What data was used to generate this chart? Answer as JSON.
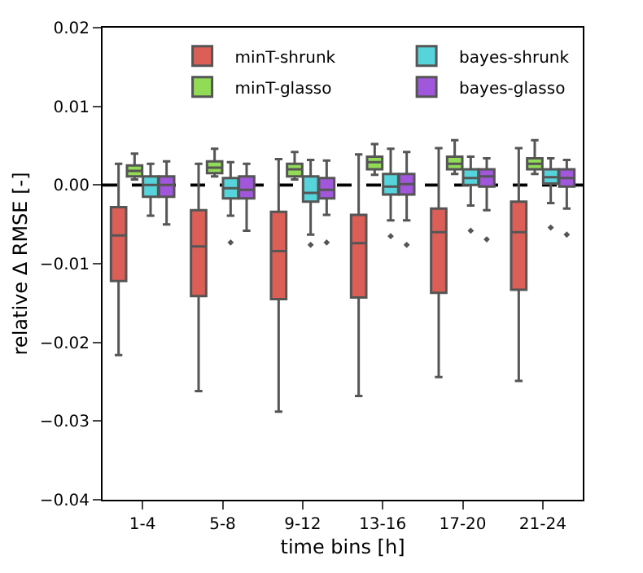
{
  "chart_data": {
    "type": "box",
    "xlabel": "time bins [h]",
    "ylabel": "relative Δ RMSE [-]",
    "categories": [
      "1-4",
      "5-8",
      "9-12",
      "13-16",
      "17-20",
      "21-24"
    ],
    "ylim": [
      -0.04,
      0.02
    ],
    "yticks": [
      {
        "value": -0.04,
        "label": "−0.04"
      },
      {
        "value": -0.03,
        "label": "−0.03"
      },
      {
        "value": -0.02,
        "label": "−0.02"
      },
      {
        "value": -0.01,
        "label": "−0.01"
      },
      {
        "value": 0,
        "label": "0.00"
      },
      {
        "value": 0.01,
        "label": "0.01"
      },
      {
        "value": 0.02,
        "label": "0.02"
      }
    ],
    "legend": "top right",
    "ref_lines": [
      {
        "axis": "y",
        "value": 0,
        "color": "#000000",
        "line_style": "dashed"
      }
    ],
    "series": [
      {
        "name": "minT-shrunk",
        "color": "#db5f57",
        "boxes": [
          {
            "low": -0.0216,
            "q1": -0.0122,
            "median": -0.0064,
            "q3": -0.0028,
            "high": 0.0027
          },
          {
            "low": -0.0262,
            "q1": -0.0141,
            "median": -0.0078,
            "q3": -0.0032,
            "high": 0.0027
          },
          {
            "low": -0.0288,
            "q1": -0.0145,
            "median": -0.0084,
            "q3": -0.0034,
            "high": 0.0033
          },
          {
            "low": -0.0268,
            "q1": -0.0143,
            "median": -0.0074,
            "q3": -0.0038,
            "high": 0.0039
          },
          {
            "low": -0.0244,
            "q1": -0.0137,
            "median": -0.006,
            "q3": -0.003,
            "high": 0.0047
          },
          {
            "low": -0.0249,
            "q1": -0.0133,
            "median": -0.006,
            "q3": -0.0021,
            "high": 0.0047
          }
        ]
      },
      {
        "name": "minT-glasso",
        "color": "#91db57",
        "boxes": [
          {
            "low": 0.0007,
            "q1": 0.0011,
            "median": 0.0018,
            "q3": 0.0025,
            "high": 0.004
          },
          {
            "low": 0.0011,
            "q1": 0.0015,
            "median": 0.0022,
            "q3": 0.003,
            "high": 0.0046
          },
          {
            "low": 0.0007,
            "q1": 0.0011,
            "median": 0.002,
            "q3": 0.0027,
            "high": 0.0042
          },
          {
            "low": 0.0013,
            "q1": 0.002,
            "median": 0.0029,
            "q3": 0.0036,
            "high": 0.0052
          },
          {
            "low": 0.0014,
            "q1": 0.002,
            "median": 0.0027,
            "q3": 0.0036,
            "high": 0.0057
          },
          {
            "low": 0.0014,
            "q1": 0.002,
            "median": 0.0027,
            "q3": 0.0034,
            "high": 0.0057
          }
        ]
      },
      {
        "name": "bayes-shrunk",
        "color": "#57d3db",
        "boxes": [
          {
            "low": -0.0039,
            "q1": -0.0015,
            "median": 0,
            "q3": 0.0011,
            "high": 0.0027
          },
          {
            "low": -0.0039,
            "q1": -0.0017,
            "median": -0.0004,
            "q3": 0.0009,
            "high": 0.0029,
            "outliers": [
              -0.0073
            ]
          },
          {
            "low": -0.0063,
            "q1": -0.0021,
            "median": -0.001,
            "q3": 0.0011,
            "high": 0.0032,
            "outliers": [
              -0.0076
            ]
          },
          {
            "low": -0.0045,
            "q1": -0.0012,
            "median": -0.0002,
            "q3": 0.0014,
            "high": 0.0046,
            "outliers": [
              -0.0065
            ]
          },
          {
            "low": -0.0026,
            "q1": 0,
            "median": 0.0009,
            "q3": 0.002,
            "high": 0.0036,
            "outliers": [
              -0.0058
            ]
          },
          {
            "low": -0.0023,
            "q1": 0.0002,
            "median": 0.001,
            "q3": 0.002,
            "high": 0.0034,
            "outliers": [
              -0.0054
            ]
          }
        ]
      },
      {
        "name": "bayes-glasso",
        "color": "#a157db",
        "boxes": [
          {
            "low": -0.005,
            "q1": -0.0015,
            "median": 0,
            "q3": 0.0011,
            "high": 0.003
          },
          {
            "low": -0.0058,
            "q1": -0.0017,
            "median": -0.0006,
            "q3": 0.0011,
            "high": 0.0027
          },
          {
            "low": -0.0038,
            "q1": -0.0017,
            "median": -0.0006,
            "q3": 0.0009,
            "high": 0.0031,
            "outliers": [
              -0.0073
            ]
          },
          {
            "low": -0.0045,
            "q1": -0.0012,
            "median": 0.0001,
            "q3": 0.0014,
            "high": 0.0042,
            "outliers": [
              -0.0076
            ]
          },
          {
            "low": -0.0032,
            "q1": -0.0002,
            "median": 0.0011,
            "q3": 0.002,
            "high": 0.0034,
            "outliers": [
              -0.0069
            ]
          },
          {
            "low": -0.003,
            "q1": -0.0002,
            "median": 0.0009,
            "q3": 0.002,
            "high": 0.0032,
            "outliers": [
              -0.0063
            ]
          }
        ]
      }
    ]
  }
}
